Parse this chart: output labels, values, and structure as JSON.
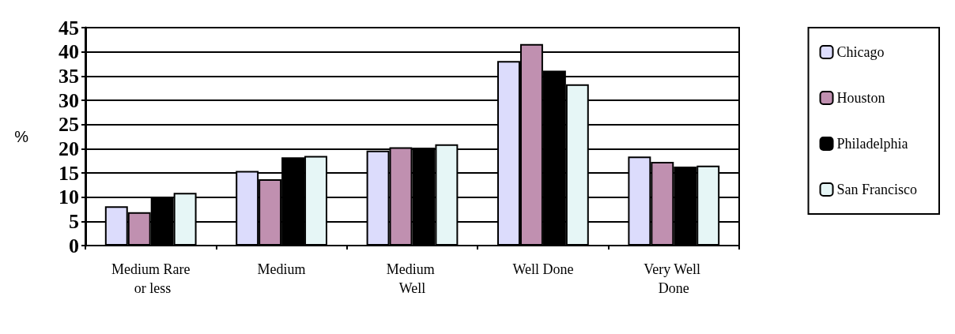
{
  "chart_data": {
    "type": "bar",
    "ylabel": "%",
    "categories": [
      "Medium Rare or less",
      "Medium",
      "Medium Well",
      "Well Done",
      "Very Well Done"
    ],
    "series": [
      {
        "name": "Chicago",
        "color": "#dcdcfc",
        "values": [
          8.1,
          15.4,
          19.6,
          38.1,
          18.4
        ]
      },
      {
        "name": "Houston",
        "color": "#c090b0",
        "values": [
          6.9,
          13.7,
          20.3,
          41.6,
          17.3
        ]
      },
      {
        "name": "Philadelphia",
        "color": "#000000",
        "values": [
          10,
          18.2,
          20.2,
          36.1,
          16.3
        ]
      },
      {
        "name": "San Francisco",
        "color": "#e6f6f6",
        "values": [
          10.9,
          18.5,
          20.9,
          33.3,
          16.5
        ]
      }
    ],
    "ylim": [
      0,
      45
    ],
    "yticks": [
      0,
      5,
      10,
      15,
      20,
      25,
      30,
      35,
      40,
      45
    ],
    "grid": "y",
    "legend": "right"
  }
}
